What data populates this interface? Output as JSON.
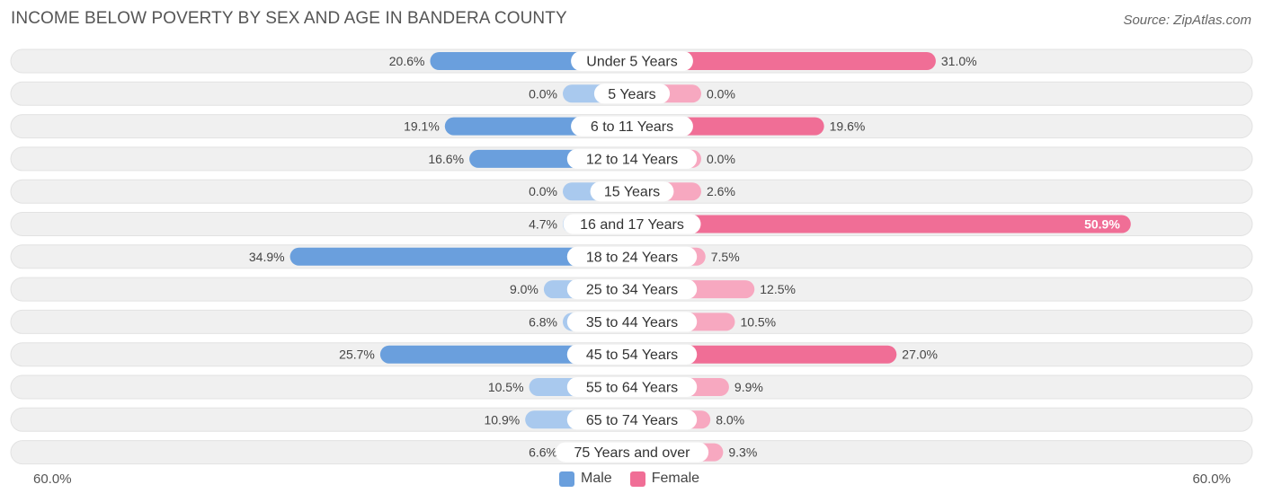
{
  "title": "INCOME BELOW POVERTY BY SEX AND AGE IN BANDERA COUNTY",
  "source": "Source: ZipAtlas.com",
  "axis": {
    "left_label": "60.0%",
    "right_label": "60.0%"
  },
  "legend": [
    {
      "label": "Male",
      "color": "#6a9fdd"
    },
    {
      "label": "Female",
      "color": "#f06e96"
    }
  ],
  "colors": {
    "male_strong": "#6a9fdd",
    "male_light": "#a9c9ee",
    "female_strong": "#f06e96",
    "female_light": "#f7a8c0",
    "row_bg": "#f0f0f0"
  },
  "chart_data": {
    "type": "bar",
    "orientation": "horizontal-diverging",
    "title": "INCOME BELOW POVERTY BY SEX AND AGE IN BANDERA COUNTY",
    "xlim": [
      -60,
      60
    ],
    "categories": [
      "Under 5 Years",
      "5 Years",
      "6 to 11 Years",
      "12 to 14 Years",
      "15 Years",
      "16 and 17 Years",
      "18 to 24 Years",
      "25 to 34 Years",
      "35 to 44 Years",
      "45 to 54 Years",
      "55 to 64 Years",
      "65 to 74 Years",
      "75 Years and over"
    ],
    "series": [
      {
        "name": "Male",
        "values": [
          20.6,
          0.0,
          19.1,
          16.6,
          0.0,
          4.7,
          34.9,
          9.0,
          6.8,
          25.7,
          10.5,
          10.9,
          6.6
        ],
        "labels": [
          "20.6%",
          "0.0%",
          "19.1%",
          "16.6%",
          "0.0%",
          "4.7%",
          "34.9%",
          "9.0%",
          "6.8%",
          "25.7%",
          "10.5%",
          "10.9%",
          "6.6%"
        ]
      },
      {
        "name": "Female",
        "values": [
          31.0,
          0.0,
          19.6,
          0.0,
          2.6,
          50.9,
          7.5,
          12.5,
          10.5,
          27.0,
          9.9,
          8.0,
          9.3
        ],
        "labels": [
          "31.0%",
          "0.0%",
          "19.6%",
          "0.0%",
          "2.6%",
          "50.9%",
          "7.5%",
          "12.5%",
          "10.5%",
          "27.0%",
          "9.9%",
          "8.0%",
          "9.3%"
        ]
      }
    ]
  }
}
